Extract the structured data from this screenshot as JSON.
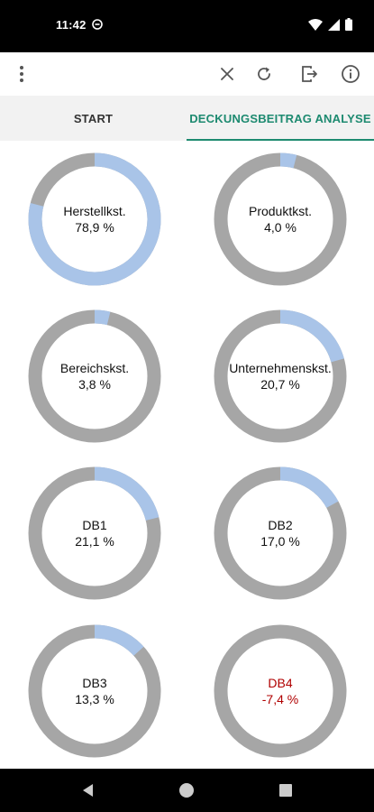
{
  "status_bar": {
    "time": "11:42"
  },
  "toolbar": {
    "icons": [
      "more-vert-icon",
      "close-icon",
      "refresh-icon",
      "exit-icon",
      "info-icon"
    ]
  },
  "tabs": [
    {
      "label": "START",
      "active": false
    },
    {
      "label": "DECKUNGSBEITRAG ANALYSE",
      "active": true
    }
  ],
  "colors": {
    "accent": "#1d8a70",
    "ring_track": "#a6a6a6",
    "ring_value": "#a9c4e8",
    "negative": "#b00000"
  },
  "chart_data": {
    "type": "donut",
    "items": [
      {
        "label": "Herstellkst.",
        "value_text": "78,9 %",
        "value": 78.9,
        "negative": false
      },
      {
        "label": "Produktkst.",
        "value_text": "4,0 %",
        "value": 4.0,
        "negative": false
      },
      {
        "label": "Bereichskst.",
        "value_text": "3,8 %",
        "value": 3.8,
        "negative": false
      },
      {
        "label": "Unternehmenskst.",
        "value_text": "20,7 %",
        "value": 20.7,
        "negative": false
      },
      {
        "label": "DB1",
        "value_text": "21,1 %",
        "value": 21.1,
        "negative": false
      },
      {
        "label": "DB2",
        "value_text": "17,0 %",
        "value": 17.0,
        "negative": false
      },
      {
        "label": "DB3",
        "value_text": "13,3 %",
        "value": 13.3,
        "negative": false
      },
      {
        "label": "DB4",
        "value_text": "-7,4 %",
        "value": -7.4,
        "negative": true
      }
    ]
  }
}
